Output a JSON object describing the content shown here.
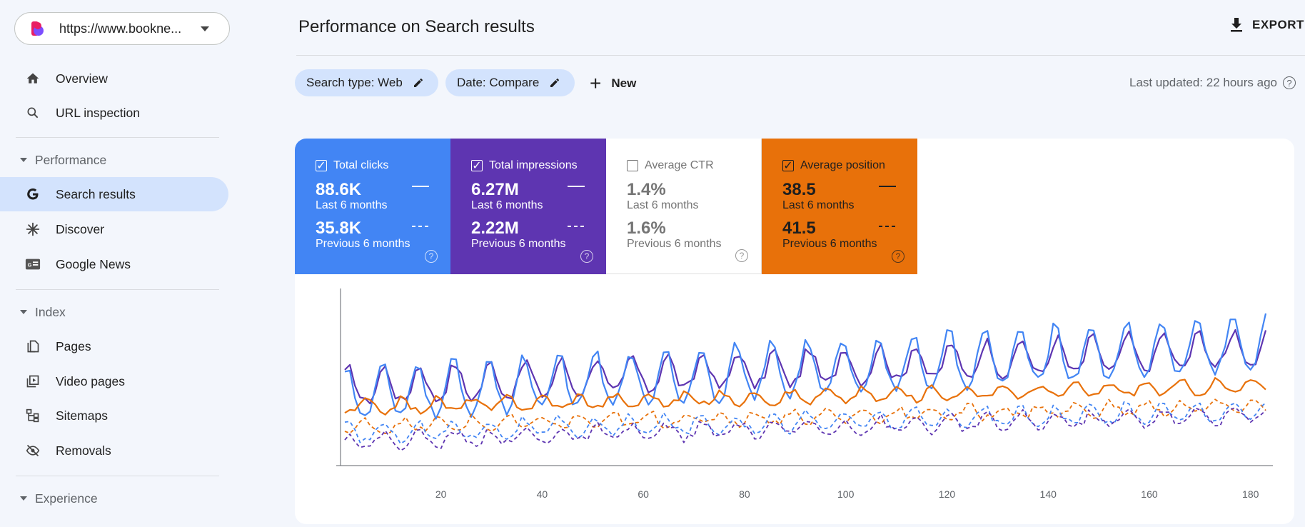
{
  "property": {
    "url": "https://www.bookne..."
  },
  "sidebar": {
    "items": [
      {
        "label": "Overview"
      },
      {
        "label": "URL inspection"
      },
      {
        "label": "Search results"
      },
      {
        "label": "Discover"
      },
      {
        "label": "Google News"
      },
      {
        "label": "Pages"
      },
      {
        "label": "Video pages"
      },
      {
        "label": "Sitemaps"
      },
      {
        "label": "Removals"
      }
    ],
    "sections": [
      {
        "label": "Performance"
      },
      {
        "label": "Index"
      },
      {
        "label": "Experience"
      }
    ]
  },
  "header": {
    "title": "Performance on Search results",
    "export_label": "EXPORT"
  },
  "filters": {
    "chips": [
      {
        "label": "Search type: Web"
      },
      {
        "label": "Date: Compare"
      }
    ],
    "new_label": "New",
    "last_updated": "Last updated: 22 hours ago"
  },
  "metrics": [
    {
      "name": "Total clicks",
      "checked": true,
      "value": "88.6K",
      "period": "Last 6 months",
      "prev_value": "35.8K",
      "prev_period": "Previous 6 months",
      "color": "#4285f4"
    },
    {
      "name": "Total impressions",
      "checked": true,
      "value": "6.27M",
      "period": "Last 6 months",
      "prev_value": "2.22M",
      "prev_period": "Previous 6 months",
      "color": "#5e35b1"
    },
    {
      "name": "Average CTR",
      "checked": false,
      "value": "1.4%",
      "period": "Last 6 months",
      "prev_value": "1.6%",
      "prev_period": "Previous 6 months",
      "color": "#ffffff"
    },
    {
      "name": "Average position",
      "checked": true,
      "value": "38.5",
      "period": "Last 6 months",
      "prev_value": "41.5",
      "prev_period": "Previous 6 months",
      "color": "#e8710a"
    }
  ],
  "chart_data": {
    "type": "line",
    "x_ticks": [
      "20",
      "40",
      "60",
      "80",
      "100",
      "120",
      "140",
      "160",
      "180"
    ],
    "x_range": [
      1,
      183
    ],
    "y_range": [
      0,
      100
    ],
    "series": [
      {
        "name": "Total impressions",
        "style": "solid",
        "color": "#5e35b1",
        "base": 42,
        "trend": 0.13,
        "amp": 14,
        "phase": 0,
        "noise": 3
      },
      {
        "name": "Total clicks",
        "style": "solid",
        "color": "#4285f4",
        "base": 36,
        "trend": 0.17,
        "amp": 22,
        "phase": 0.3,
        "noise": 3
      },
      {
        "name": "Average position",
        "style": "solid",
        "color": "#e8710a",
        "base": 32,
        "trend": 0.07,
        "amp": 5,
        "phase": 3.1,
        "noise": 2
      },
      {
        "name": "Average position",
        "style": "dashed",
        "color": "#e8710a",
        "base": 20,
        "trend": 0.07,
        "amp": 5,
        "phase": 3.1,
        "noise": 2.5
      },
      {
        "name": "Total clicks",
        "style": "dashed",
        "color": "#4285f4",
        "base": 16,
        "trend": 0.075,
        "amp": 7,
        "phase": 0.3,
        "noise": 2.5
      },
      {
        "name": "Total impressions",
        "style": "dashed",
        "color": "#5e35b1",
        "base": 11,
        "trend": 0.09,
        "amp": 6,
        "phase": 0,
        "noise": 2.5
      }
    ]
  }
}
